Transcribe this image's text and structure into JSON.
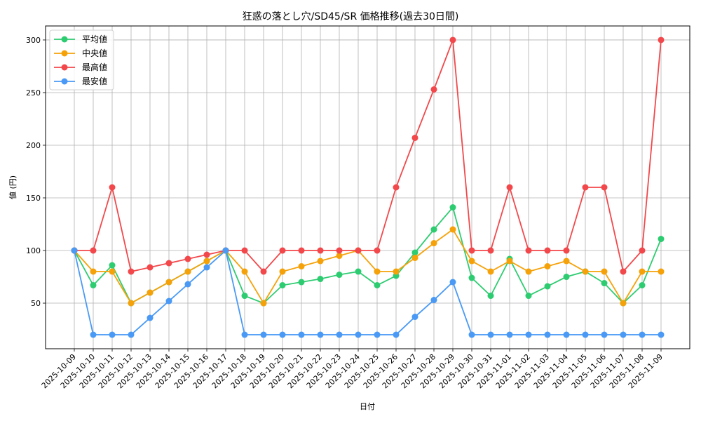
{
  "chart_data": {
    "type": "line",
    "title": "狂惑の落とし穴/SD45/SR 価格推移(過去30日間)",
    "xlabel": "日付",
    "ylabel": "値 (円)",
    "ylim": [
      6.7,
      313.3
    ],
    "yticks": [
      50,
      100,
      150,
      200,
      250,
      300
    ],
    "grid": true,
    "legend_position": "upper left",
    "categories": [
      "2025-10-09",
      "2025-10-10",
      "2025-10-11",
      "2025-10-12",
      "2025-10-13",
      "2025-10-14",
      "2025-10-15",
      "2025-10-16",
      "2025-10-17",
      "2025-10-18",
      "2025-10-19",
      "2025-10-20",
      "2025-10-21",
      "2025-10-22",
      "2025-10-23",
      "2025-10-24",
      "2025-10-25",
      "2025-10-26",
      "2025-10-27",
      "2025-10-28",
      "2025-10-29",
      "2025-10-30",
      "2025-10-31",
      "2025-11-01",
      "2025-11-02",
      "2025-11-03",
      "2025-11-04",
      "2025-11-05",
      "2025-11-06",
      "2025-11-07",
      "2025-11-08",
      "2025-11-09"
    ],
    "series": [
      {
        "name": "平均値",
        "color": "#2ecc71",
        "values": [
          100,
          67,
          86,
          50,
          60,
          70,
          80,
          90,
          100,
          57,
          50,
          67,
          70,
          73,
          77,
          80,
          67,
          76,
          98,
          120,
          141,
          74,
          57,
          92,
          57,
          66,
          75,
          80,
          69,
          50,
          67,
          111
        ]
      },
      {
        "name": "中央値",
        "color": "#f5a20a",
        "values": [
          100,
          80,
          80,
          50,
          60,
          70,
          80,
          90,
          100,
          80,
          50,
          80,
          85,
          90,
          95,
          100,
          80,
          80,
          93,
          107,
          120,
          90,
          80,
          90,
          80,
          85,
          90,
          80,
          80,
          50,
          80,
          80
        ]
      },
      {
        "name": "最高値",
        "color": "#f2484b",
        "values": [
          100,
          100,
          160,
          80,
          84,
          88,
          92,
          96,
          100,
          100,
          80,
          100,
          100,
          100,
          100,
          100,
          100,
          160,
          207,
          253,
          300,
          100,
          100,
          160,
          100,
          100,
          100,
          160,
          160,
          80,
          100,
          300
        ]
      },
      {
        "name": "最安値",
        "color": "#4a9af5",
        "values": [
          100,
          20,
          20,
          20,
          36,
          52,
          68,
          84,
          100,
          20,
          20,
          20,
          20,
          20,
          20,
          20,
          20,
          20,
          37,
          53,
          70,
          20,
          20,
          20,
          20,
          20,
          20,
          20,
          20,
          20,
          20,
          20
        ]
      }
    ]
  }
}
